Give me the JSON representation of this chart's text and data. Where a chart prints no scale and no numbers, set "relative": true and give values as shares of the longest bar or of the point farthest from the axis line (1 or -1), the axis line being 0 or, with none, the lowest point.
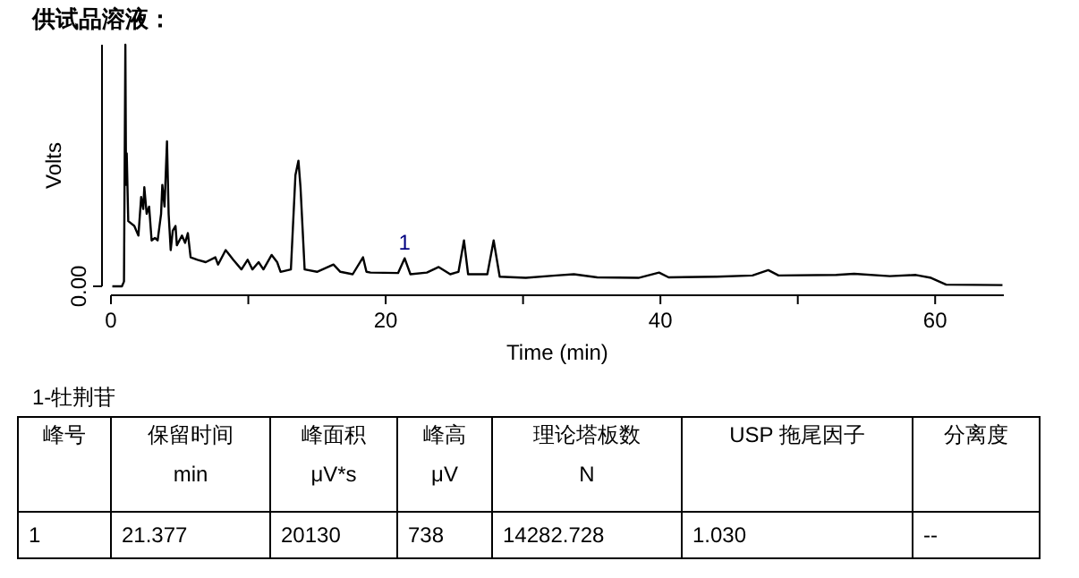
{
  "chart_data": [
    {
      "type": "line",
      "title": "供试品溶液：",
      "xlabel": "Time (min)",
      "ylabel": "Volts",
      "relative": true,
      "xlim": [
        0,
        65
      ],
      "xticks": [
        0,
        {
          "value": 10,
          "label": null
        },
        20,
        {
          "value": 30,
          "label": null
        },
        40,
        {
          "value": 50,
          "label": null
        },
        60
      ],
      "grid": false,
      "marker": "none",
      "line_style": "solid",
      "annotations": [
        {
          "text": "1",
          "x": 21.38,
          "y": 0.116
        },
        "0.00"
      ],
      "series": [
        {
          "color": "#000000",
          "x": [
            0.1,
            0.8,
            0.95,
            1.05,
            1.1,
            1.15,
            1.26,
            1.7,
            2.0,
            2.2,
            2.35,
            2.43,
            2.6,
            2.78,
            2.96,
            3.2,
            3.4,
            3.65,
            3.74,
            3.9,
            4.08,
            4.2,
            4.35,
            4.5,
            4.7,
            4.8,
            5.17,
            5.4,
            5.6,
            5.8,
            6.3,
            6.9,
            7.6,
            7.8,
            8.35,
            8.9,
            9.5,
            9.95,
            10.3,
            10.75,
            11.1,
            11.7,
            12.1,
            12.35,
            13.1,
            13.43,
            13.65,
            13.8,
            14.1,
            15,
            16.2,
            16.7,
            17.6,
            18.35,
            18.6,
            18.9,
            20.9,
            21.38,
            21.8,
            23,
            23.86,
            24.7,
            25.3,
            25.7,
            26.0,
            27.4,
            27.86,
            28.3,
            30.2,
            32.4,
            33.7,
            35.4,
            38.4,
            39.9,
            40.6,
            44.1,
            46.7,
            47.85,
            48.6,
            52.8,
            54.1,
            56.7,
            58.6,
            59.7,
            60.8,
            64.9
          ],
          "values": [
            0,
            0,
            0.02,
            1,
            0.42,
            0.55,
            0.27,
            0.25,
            0.21,
            0.37,
            0.32,
            0.41,
            0.3,
            0.33,
            0.19,
            0.2,
            0.19,
            0.3,
            0.42,
            0.33,
            0.6,
            0.3,
            0.15,
            0.23,
            0.25,
            0.17,
            0.21,
            0.18,
            0.22,
            0.12,
            0.11,
            0.1,
            0.12,
            0.09,
            0.15,
            0.11,
            0.07,
            0.11,
            0.07,
            0.1,
            0.07,
            0.13,
            0.1,
            0.06,
            0.07,
            0.46,
            0.52,
            0.41,
            0.07,
            0.06,
            0.09,
            0.06,
            0.05,
            0.12,
            0.06,
            0.057,
            0.055,
            0.116,
            0.05,
            0.057,
            0.08,
            0.05,
            0.06,
            0.19,
            0.05,
            0.05,
            0.19,
            0.04,
            0.035,
            0.045,
            0.05,
            0.037,
            0.035,
            0.057,
            0.037,
            0.04,
            0.045,
            0.067,
            0.045,
            0.047,
            0.052,
            0.042,
            0.047,
            0.035,
            0.007,
            0.005
          ]
        }
      ]
    },
    {
      "type": "other",
      "title": "1-牡荆苷",
      "categories": [
        "峰号",
        "保留时间\nmin",
        "峰面积\nμV*s",
        "峰高\nμV",
        "理论塔板数\nN",
        "USP 拖尾因子",
        "分离度"
      ],
      "annotations": [
        "1",
        "21.377",
        "20130",
        "738",
        "14282.728",
        "1.030",
        "--"
      ]
    }
  ]
}
